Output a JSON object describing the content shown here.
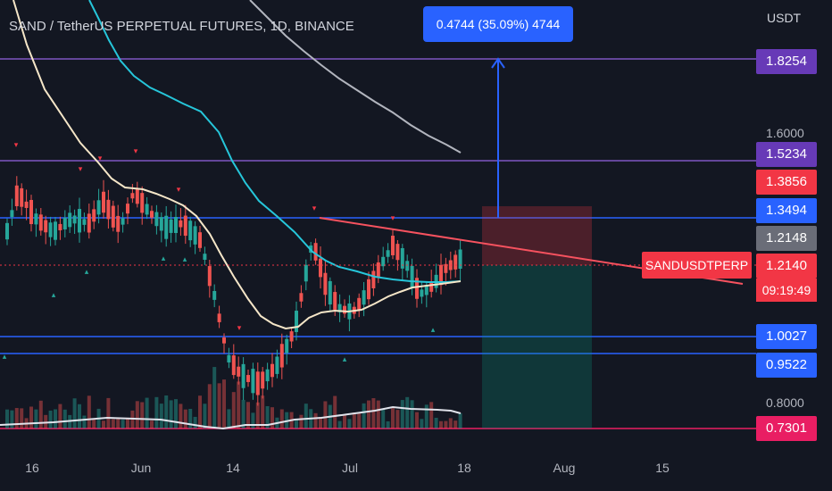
{
  "header": {
    "title": "SAND / TetherUS PERPETUAL FUTURES, 1D, BINANCE",
    "currency": "USDT"
  },
  "measure": {
    "label": "0.4744 (35.09%) 4744"
  },
  "price_axis": {
    "ticks": [
      "1.6000",
      "0.8000"
    ],
    "labels": [
      {
        "value": "1.8254",
        "color": "#673ab7"
      },
      {
        "value": "1.5234",
        "color": "#673ab7"
      },
      {
        "value": "1.3856",
        "color": "#f23645"
      },
      {
        "value": "1.3494",
        "color": "#2962ff"
      },
      {
        "value": "1.2148",
        "color": "#6a6d78"
      },
      {
        "value": "1.2140",
        "color": "#f23645"
      },
      {
        "value": "1.0027",
        "color": "#2962ff"
      },
      {
        "value": "0.9522",
        "color": "#2962ff"
      },
      {
        "value": "0.7301",
        "color": "#e91e63"
      }
    ]
  },
  "current_price": {
    "symbol": "SANDUSDTPERP",
    "price": "1.2140",
    "countdown": "09:19:49"
  },
  "time_axis": {
    "labels": [
      "16",
      "Jun",
      "14",
      "Jul",
      "18",
      "Aug",
      "15"
    ]
  },
  "colors": {
    "background": "#131722",
    "up": "#26a69a",
    "down": "#ef5350",
    "horizontal_blue": "#2962ff",
    "horizontal_purple": "#7e57c2",
    "trendline": "#f7525f",
    "ma_fast": "#f5e6c8",
    "ma_mid": "#26c6da",
    "ma_slow": "#b2b5be"
  }
}
